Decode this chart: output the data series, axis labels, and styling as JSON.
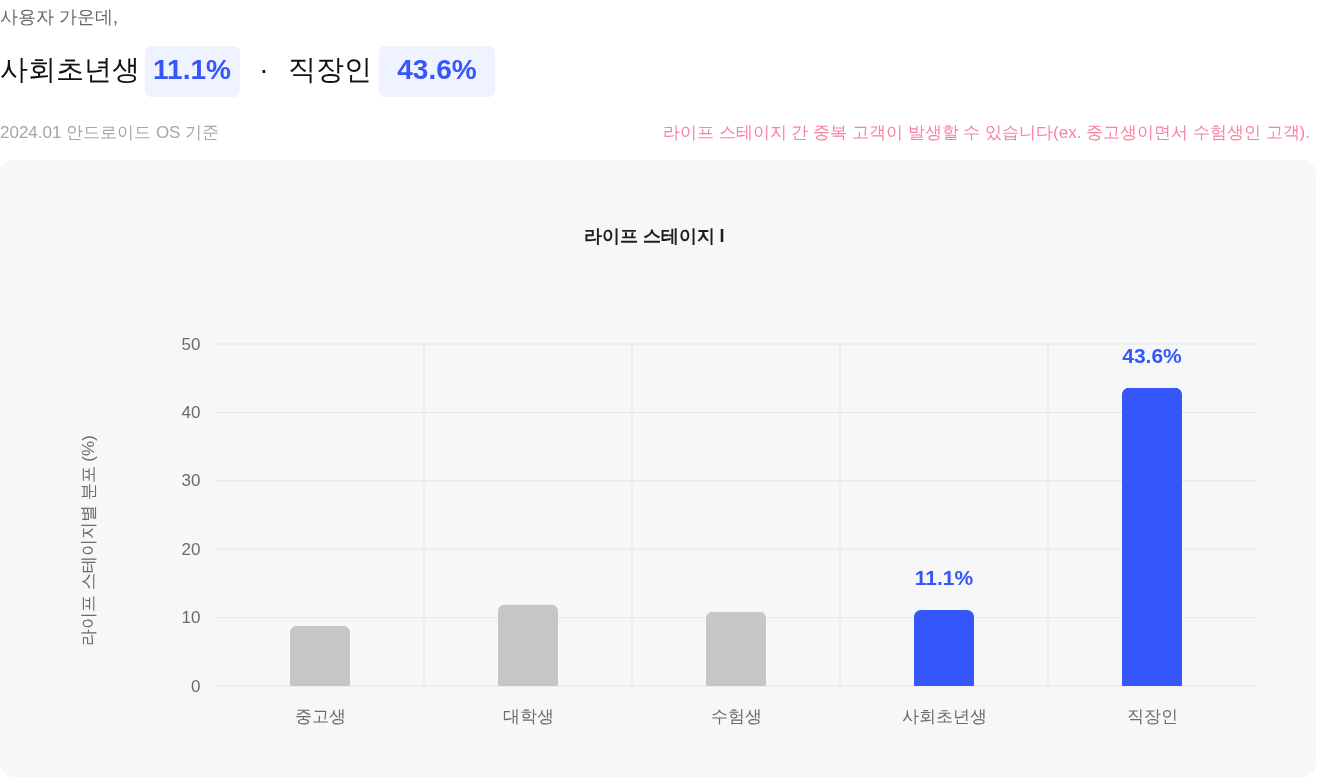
{
  "chart_data": {
    "type": "bar",
    "title": "라이프 스테이지 I",
    "subtitle": "2024.01 안드로이드 OS 기준",
    "ylabel": "라이프 스테이지별 분포 (%)",
    "categories": [
      "중고생",
      "대학생",
      "수험생",
      "사회초년생",
      "직장인"
    ],
    "values": [
      8.8,
      11.9,
      10.9,
      11.1,
      43.6
    ],
    "colors": [
      "#c6c6c6",
      "#c6c6c6",
      "#c6c6c6",
      "#3556fb",
      "#3556fb"
    ],
    "value_labels": [
      null,
      null,
      null,
      "11.1%",
      "43.6%"
    ],
    "ylim": [
      0,
      50
    ],
    "yticks": [
      0,
      10,
      20,
      30,
      40,
      50
    ],
    "grid": true,
    "annotations": [
      "사용자 가운데,",
      "사회초년생",
      "11.1%",
      "·",
      "직장인",
      "43.6%",
      "라이프 스테이지 간 중복 고객이 발생할 수 있습니다(ex. 중고생이면서 수험생인 고객)."
    ]
  }
}
